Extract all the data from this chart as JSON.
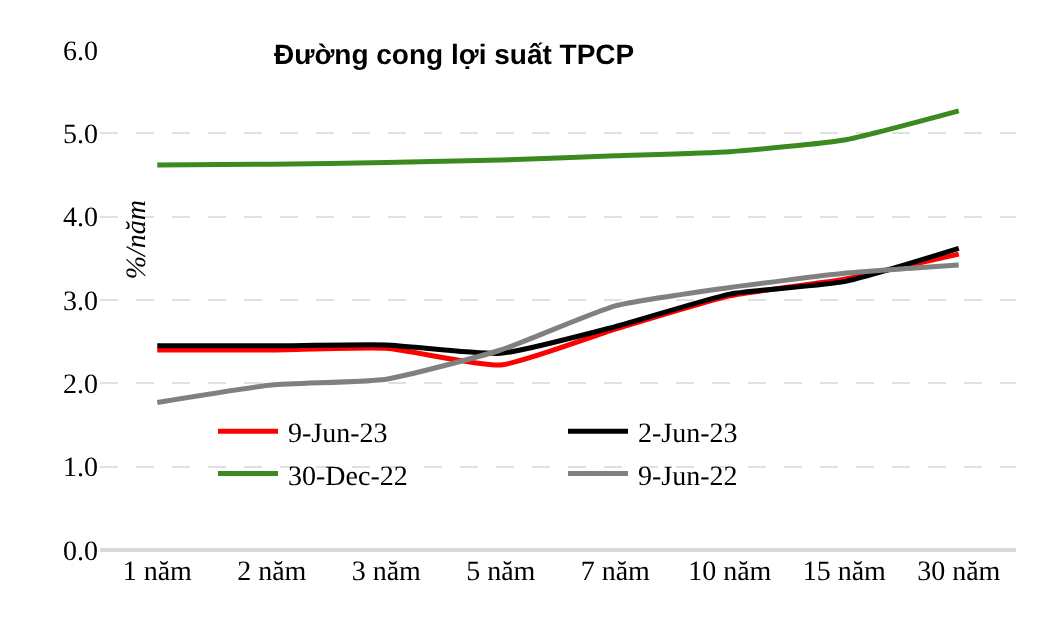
{
  "chart_data": {
    "type": "line",
    "title": "Đường cong lợi suất TPCP",
    "ylabel": "%/năm",
    "categories": [
      "1 năm",
      "2 năm",
      "3 năm",
      "5 năm",
      "7 năm",
      "10 năm",
      "15 năm",
      "30 năm"
    ],
    "series": [
      {
        "name": "9-Jun-23",
        "color": "#ff0000",
        "values": [
          2.4,
          2.4,
          2.42,
          2.22,
          2.65,
          3.05,
          3.25,
          3.55
        ]
      },
      {
        "name": "2-Jun-23",
        "color": "#000000",
        "values": [
          2.45,
          2.45,
          2.46,
          2.36,
          2.68,
          3.07,
          3.22,
          3.62
        ]
      },
      {
        "name": "30-Dec-22",
        "color": "#3a8a20",
        "values": [
          4.62,
          4.63,
          4.65,
          4.68,
          4.73,
          4.78,
          4.92,
          5.27
        ]
      },
      {
        "name": "9-Jun-22",
        "color": "#808080",
        "values": [
          1.77,
          1.98,
          2.05,
          2.4,
          2.93,
          3.15,
          3.32,
          3.42
        ]
      }
    ],
    "ylim": [
      0,
      6
    ],
    "yticks": [
      {
        "value": 0,
        "label": "0.0"
      },
      {
        "value": 1,
        "label": "1.0"
      },
      {
        "value": 2,
        "label": "2.0"
      },
      {
        "value": 3,
        "label": "3.0"
      },
      {
        "value": 4,
        "label": "4.0"
      },
      {
        "value": 5,
        "label": "5.0"
      },
      {
        "value": 6,
        "label": "6.0"
      }
    ],
    "grid": "y",
    "legend": "bottom",
    "marker": "none",
    "line_style": "solid"
  }
}
